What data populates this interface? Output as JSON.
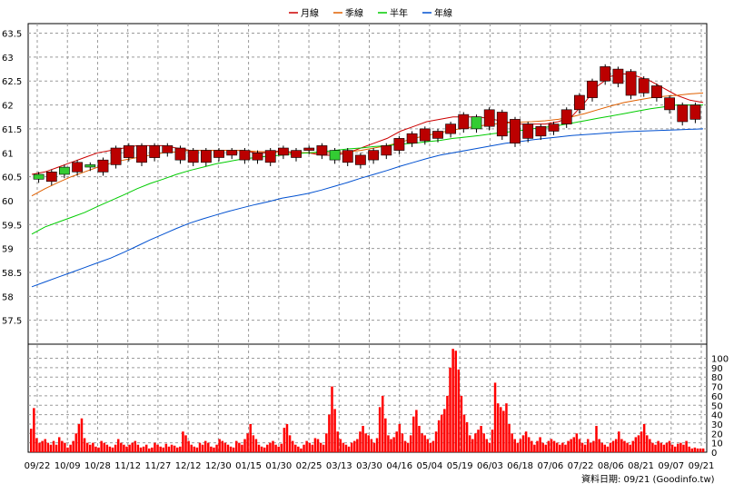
{
  "chart_data": [
    {
      "type": "line",
      "panel": "price",
      "legend_position": "top-center",
      "legend": [
        {
          "name": "月線",
          "color": "#cc0000"
        },
        {
          "name": "季線",
          "color": "#e06000"
        },
        {
          "name": "半年",
          "color": "#00cc00"
        },
        {
          "name": "年線",
          "color": "#0050d0"
        }
      ],
      "ylim": [
        57.0,
        63.7
      ],
      "y_ticks": [
        "57.5",
        "58",
        "58.5",
        "59",
        "59.5",
        "60",
        "60.5",
        "61",
        "61.5",
        "62",
        "62.5",
        "63",
        "63.5"
      ],
      "grid": true,
      "x_tick_labels": [
        "09/22",
        "10/09",
        "10/28",
        "11/12",
        "11/27",
        "12/12",
        "12/30",
        "01/15",
        "01/30",
        "02/25",
        "03/13",
        "03/30",
        "04/16",
        "05/04",
        "05/19",
        "06/03",
        "06/18",
        "07/06",
        "07/22",
        "08/06",
        "08/21",
        "09/07",
        "09/21"
      ],
      "series": [
        {
          "name": "月線",
          "color": "#cc0000",
          "y": [
            60.55,
            60.6,
            60.7,
            60.8,
            60.9,
            61.0,
            61.05,
            61.1,
            61.15,
            61.15,
            61.15,
            61.1,
            61.05,
            61.05,
            61.05,
            61.05,
            61.05,
            61.0,
            61.0,
            61.05,
            61.0,
            61.0,
            60.95,
            60.95,
            61.0,
            61.1,
            61.2,
            61.3,
            61.45,
            61.55,
            61.65,
            61.7,
            61.75,
            61.75,
            61.75,
            61.7,
            61.65,
            61.6,
            61.6,
            61.6,
            61.65,
            61.75,
            62.05,
            62.4,
            62.6,
            62.65,
            62.6,
            62.5,
            62.35,
            62.2,
            62.1,
            62.05
          ]
        },
        {
          "name": "季線",
          "color": "#e06000",
          "y": [
            60.1,
            60.25,
            60.38,
            60.5,
            60.6,
            60.7,
            60.78,
            60.85,
            60.9,
            60.95,
            61.0,
            61.02,
            61.05,
            61.05,
            61.05,
            61.05,
            61.05,
            61.03,
            61.02,
            61.0,
            61.0,
            61.0,
            61.0,
            61.0,
            61.02,
            61.05,
            61.1,
            61.15,
            61.22,
            61.3,
            61.36,
            61.42,
            61.48,
            61.52,
            61.56,
            61.6,
            61.62,
            61.64,
            61.65,
            61.67,
            61.7,
            61.75,
            61.82,
            61.9,
            61.98,
            62.05,
            62.1,
            62.15,
            62.18,
            62.2,
            62.23,
            62.25
          ]
        },
        {
          "name": "半年",
          "color": "#00cc00",
          "y": [
            59.3,
            59.45,
            59.55,
            59.65,
            59.75,
            59.88,
            60.0,
            60.12,
            60.25,
            60.36,
            60.45,
            60.55,
            60.63,
            60.7,
            60.77,
            60.82,
            60.87,
            60.9,
            60.93,
            60.95,
            60.98,
            61.0,
            61.02,
            61.05,
            61.08,
            61.1,
            61.13,
            61.15,
            61.18,
            61.2,
            61.23,
            61.26,
            61.3,
            61.33,
            61.36,
            61.4,
            61.43,
            61.46,
            61.5,
            61.53,
            61.57,
            61.62,
            61.67,
            61.72,
            61.77,
            61.82,
            61.87,
            61.92,
            61.96,
            62.0,
            62.0,
            62.0
          ]
        },
        {
          "name": "年線",
          "color": "#0050d0",
          "y": [
            58.2,
            58.3,
            58.4,
            58.5,
            58.6,
            58.7,
            58.8,
            58.92,
            59.05,
            59.18,
            59.3,
            59.42,
            59.53,
            59.62,
            59.7,
            59.78,
            59.85,
            59.92,
            59.98,
            60.05,
            60.1,
            60.15,
            60.22,
            60.3,
            60.38,
            60.47,
            60.55,
            60.63,
            60.72,
            60.8,
            60.88,
            60.95,
            61.0,
            61.05,
            61.1,
            61.15,
            61.2,
            61.23,
            61.27,
            61.3,
            61.33,
            61.36,
            61.38,
            61.4,
            61.42,
            61.44,
            61.45,
            61.46,
            61.47,
            61.48,
            61.49,
            61.5
          ]
        }
      ],
      "candles": [
        {
          "o": 60.45,
          "c": 60.55
        },
        {
          "o": 60.6,
          "c": 60.4
        },
        {
          "o": 60.55,
          "c": 60.7
        },
        {
          "o": 60.8,
          "c": 60.6
        },
        {
          "o": 60.7,
          "c": 60.75
        },
        {
          "o": 60.85,
          "c": 60.6
        },
        {
          "o": 61.1,
          "c": 60.75
        },
        {
          "o": 61.15,
          "c": 60.9
        },
        {
          "o": 61.15,
          "c": 60.8
        },
        {
          "o": 61.15,
          "c": 60.9
        },
        {
          "o": 61.15,
          "c": 61.0
        },
        {
          "o": 61.1,
          "c": 60.85
        },
        {
          "o": 61.05,
          "c": 60.8
        },
        {
          "o": 61.05,
          "c": 60.8
        },
        {
          "o": 61.05,
          "c": 60.9
        },
        {
          "o": 61.05,
          "c": 60.95
        },
        {
          "o": 61.05,
          "c": 60.85
        },
        {
          "o": 61.0,
          "c": 60.85
        },
        {
          "o": 61.05,
          "c": 60.8
        },
        {
          "o": 61.1,
          "c": 60.95
        },
        {
          "o": 61.05,
          "c": 60.9
        },
        {
          "o": 61.1,
          "c": 61.05
        },
        {
          "o": 61.15,
          "c": 60.95
        },
        {
          "o": 60.85,
          "c": 61.05
        },
        {
          "o": 61.05,
          "c": 60.8
        },
        {
          "o": 60.95,
          "c": 60.75
        },
        {
          "o": 61.05,
          "c": 60.85
        },
        {
          "o": 61.15,
          "c": 60.95
        },
        {
          "o": 61.3,
          "c": 61.05
        },
        {
          "o": 61.4,
          "c": 61.2
        },
        {
          "o": 61.5,
          "c": 61.25
        },
        {
          "o": 61.45,
          "c": 61.3
        },
        {
          "o": 61.6,
          "c": 61.4
        },
        {
          "o": 61.8,
          "c": 61.5
        },
        {
          "o": 61.5,
          "c": 61.75
        },
        {
          "o": 61.9,
          "c": 61.55
        },
        {
          "o": 61.85,
          "c": 61.35
        },
        {
          "o": 61.7,
          "c": 61.2
        },
        {
          "o": 61.6,
          "c": 61.3
        },
        {
          "o": 61.55,
          "c": 61.35
        },
        {
          "o": 61.6,
          "c": 61.45
        },
        {
          "o": 61.9,
          "c": 61.6
        },
        {
          "o": 62.2,
          "c": 61.9
        },
        {
          "o": 62.5,
          "c": 62.15
        },
        {
          "o": 62.8,
          "c": 62.5
        },
        {
          "o": 62.75,
          "c": 62.45
        },
        {
          "o": 62.7,
          "c": 62.2
        },
        {
          "o": 62.55,
          "c": 62.25
        },
        {
          "o": 62.4,
          "c": 62.15
        },
        {
          "o": 62.15,
          "c": 61.9
        },
        {
          "o": 62.0,
          "c": 61.65
        },
        {
          "o": 62.0,
          "c": 61.7
        }
      ]
    },
    {
      "type": "bar",
      "panel": "volume",
      "color": "#ff0000",
      "ylim": [
        0,
        115
      ],
      "y_ticks": [
        "0",
        "10",
        "20",
        "30",
        "40",
        "50",
        "60",
        "70",
        "80",
        "90",
        "100"
      ],
      "values": [
        25,
        47,
        15,
        10,
        12,
        14,
        10,
        8,
        12,
        8,
        16,
        12,
        10,
        5,
        8,
        12,
        20,
        30,
        36,
        15,
        10,
        8,
        10,
        6,
        5,
        12,
        10,
        8,
        6,
        5,
        8,
        14,
        10,
        8,
        6,
        8,
        10,
        12,
        8,
        5,
        6,
        8,
        4,
        5,
        10,
        8,
        6,
        5,
        9,
        6,
        8,
        7,
        5,
        6,
        22,
        18,
        12,
        8,
        6,
        5,
        10,
        8,
        12,
        10,
        6,
        5,
        8,
        14,
        12,
        10,
        8,
        6,
        5,
        12,
        10,
        8,
        14,
        20,
        30,
        18,
        14,
        8,
        6,
        5,
        8,
        10,
        12,
        8,
        6,
        9,
        26,
        30,
        18,
        12,
        8,
        6,
        4,
        8,
        12,
        10,
        8,
        15,
        14,
        10,
        8,
        20,
        40,
        70,
        46,
        22,
        14,
        10,
        8,
        6,
        10,
        12,
        14,
        22,
        28,
        20,
        18,
        14,
        10,
        15,
        48,
        60,
        36,
        18,
        14,
        16,
        22,
        30,
        20,
        12,
        10,
        18,
        38,
        45,
        28,
        20,
        18,
        14,
        10,
        12,
        22,
        34,
        40,
        46,
        60,
        90,
        110,
        108,
        88,
        60,
        40,
        32,
        18,
        14,
        20,
        24,
        28,
        20,
        14,
        10,
        24,
        74,
        52,
        48,
        44,
        52,
        30,
        20,
        14,
        10,
        14,
        18,
        22,
        16,
        12,
        8,
        12,
        16,
        10,
        8,
        12,
        14,
        12,
        10,
        8,
        10,
        8,
        12,
        14,
        16,
        20,
        14,
        10,
        8,
        14,
        10,
        12,
        28,
        14,
        10,
        8,
        6,
        10,
        12,
        14,
        22,
        14,
        12,
        10,
        8,
        12,
        16,
        18,
        22,
        30,
        18,
        14,
        10,
        8,
        12,
        10,
        8,
        10,
        12,
        8,
        6,
        9,
        10,
        8,
        12,
        6,
        4,
        5,
        4,
        4,
        4
      ]
    }
  ],
  "footer": {
    "source_label": "資料日期: 09/21  (Goodinfo.tw)"
  }
}
